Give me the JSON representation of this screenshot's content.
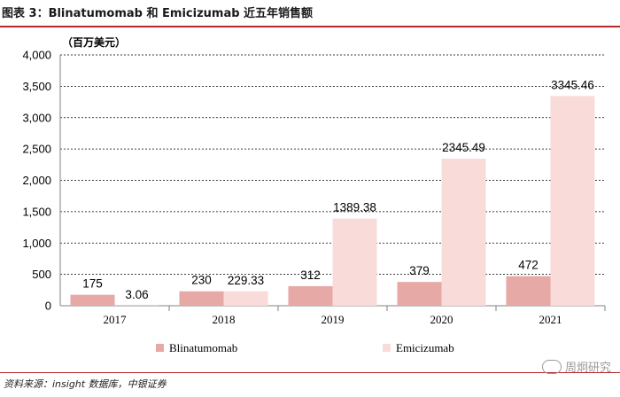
{
  "header": {
    "title": "图表 3：Blinatumomab 和 Emicizumab 近五年销售额"
  },
  "footer": {
    "source": "资料来源：insight 数据库，中银证券",
    "watermark": "周炯研究"
  },
  "chart_data": {
    "type": "bar",
    "title": "",
    "unit_label": "（百万美元）",
    "categories": [
      "2017",
      "2018",
      "2019",
      "2020",
      "2021"
    ],
    "series": [
      {
        "name": "Blinatumomab",
        "values": [
          175,
          230,
          312,
          379,
          472
        ],
        "labels": [
          "175",
          "230",
          "312",
          "379",
          "472"
        ],
        "color": "#e6a9a5"
      },
      {
        "name": "Emicizumab",
        "values": [
          3.06,
          229.33,
          1389.38,
          2345.49,
          3345.46
        ],
        "labels": [
          "3.06",
          "229.33",
          "1389.38",
          "2345.49",
          "3345.46"
        ],
        "color": "#f9dcda"
      }
    ],
    "yticks": [
      "0",
      "500",
      "1,000",
      "1,500",
      "2,000",
      "2,500",
      "3,000",
      "3,500",
      "4,000"
    ],
    "ylim": [
      0,
      4000
    ],
    "ystep": 500,
    "grid": true,
    "legend_position": "bottom"
  }
}
